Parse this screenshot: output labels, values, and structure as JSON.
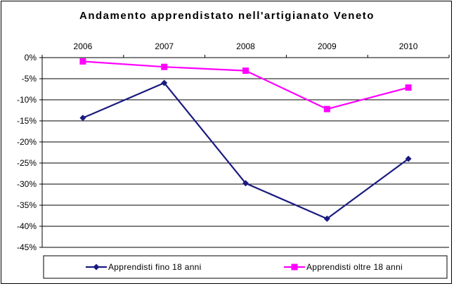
{
  "chart_data": {
    "type": "line",
    "title": "Andamento apprendistato nell'artigianato Veneto",
    "xlabel": "",
    "ylabel": "",
    "categories": [
      "2006",
      "2007",
      "2008",
      "2009",
      "2010"
    ],
    "ylim": [
      -45,
      0
    ],
    "yticks": [
      0,
      -5,
      -10,
      -15,
      -20,
      -25,
      -30,
      -35,
      -40,
      -45
    ],
    "ytick_labels": [
      "0%",
      "-5%",
      "-10%",
      "-15%",
      "-20%",
      "-25%",
      "-30%",
      "-35%",
      "-40%",
      "-45%"
    ],
    "x_axis_position": "top",
    "grid": true,
    "legend_position": "bottom",
    "series": [
      {
        "name": "Apprendisti fino 18 anni",
        "values": [
          -14.3,
          -6.0,
          -29.8,
          -38.2,
          -24.0
        ],
        "color": "#1a1a80",
        "marker": "diamond"
      },
      {
        "name": "Apprendisti oltre 18 anni",
        "values": [
          -0.9,
          -2.2,
          -3.1,
          -12.2,
          -7.1
        ],
        "color": "#ff00ff",
        "marker": "square"
      }
    ]
  }
}
